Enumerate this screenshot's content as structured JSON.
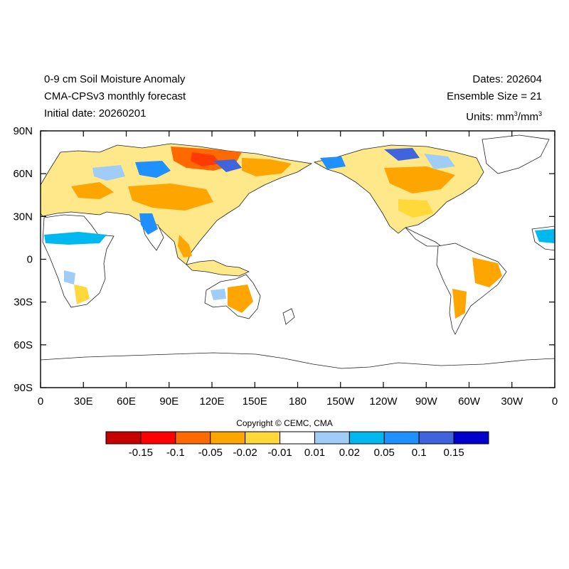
{
  "title": {
    "line1": "0-9 cm Soil Moisture Anomaly",
    "line2": "CMA-CPSv3 monthly forecast",
    "line3": "Initial date: 20260201"
  },
  "meta": {
    "dates": "Dates: 202604",
    "ensemble": "Ensemble Size = 21",
    "units_prefix": "Units: mm",
    "units_sup1": "3",
    "units_mid": "/mm",
    "units_sup2": "3"
  },
  "axes": {
    "lat_labels": [
      "90N",
      "60N",
      "30N",
      "0",
      "30S",
      "60S",
      "90S"
    ],
    "lat_values": [
      90,
      60,
      30,
      0,
      -30,
      -60,
      -90
    ],
    "lon_labels": [
      "0",
      "30E",
      "60E",
      "90E",
      "120E",
      "150E",
      "180",
      "150W",
      "120W",
      "90W",
      "60W",
      "30W",
      "0"
    ],
    "lon_values": [
      0,
      30,
      60,
      90,
      120,
      150,
      180,
      210,
      240,
      270,
      300,
      330,
      360
    ]
  },
  "colorbar": {
    "colors": [
      "#c40000",
      "#ff0000",
      "#ff6a00",
      "#ffa500",
      "#ffd83a",
      "#ffffff",
      "#9fcdf7",
      "#00b8f0",
      "#1e90ff",
      "#3f64dc",
      "#0000cd"
    ],
    "labels": [
      "-0.15",
      "-0.1",
      "-0.05",
      "-0.02",
      "-0.01",
      "0.01",
      "0.02",
      "0.05",
      "0.1",
      "0.15"
    ]
  },
  "copyright": "Copyright © CEMC, CMA"
}
